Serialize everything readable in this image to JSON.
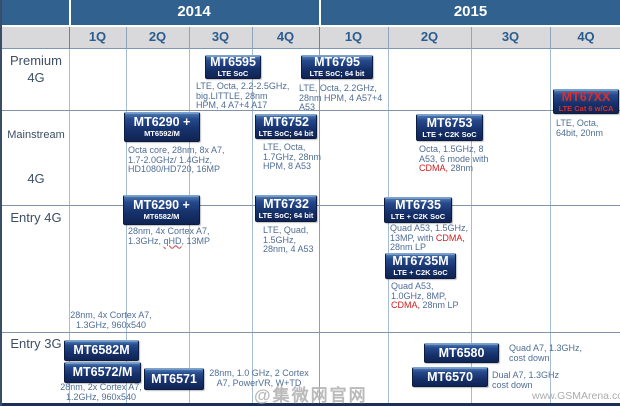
{
  "header": {
    "years": [
      "2014",
      "2015"
    ],
    "quarters": [
      "1Q",
      "2Q",
      "3Q",
      "4Q",
      "1Q",
      "2Q",
      "3Q",
      "4Q"
    ]
  },
  "row_labels": {
    "premium_line1": "Premium",
    "premium_line2": "4G",
    "mainstream_top": "Mainstream",
    "mainstream_bottom": "4G",
    "entry4g": "Entry 4G",
    "entry3g": "Entry 3G"
  },
  "chips": [
    {
      "id": "mt6595",
      "title": "MT6595",
      "subtitle": "LTE SoC",
      "variant": "blue"
    },
    {
      "id": "mt6795",
      "title": "MT6795",
      "subtitle": "LTE SoC; 64 bit",
      "variant": "blue"
    },
    {
      "id": "mt67xx",
      "title": "MT67XX",
      "subtitle": "LTE Cat 6 w/CA",
      "variant": "red-text"
    },
    {
      "id": "mt6290a",
      "title": "MT6290 +",
      "subtitle": "MT6592/M",
      "variant": "blue"
    },
    {
      "id": "mt6752",
      "title": "MT6752",
      "subtitle": "LTE SoC; 64 bit",
      "variant": "blue"
    },
    {
      "id": "mt6753",
      "title": "MT6753",
      "subtitle": "LTE + C2K SoC",
      "variant": "blue"
    },
    {
      "id": "mt6290b",
      "title": "MT6290 +",
      "subtitle": "MT6582/M",
      "variant": "blue"
    },
    {
      "id": "mt6732",
      "title": "MT6732",
      "subtitle": "LTE SoC; 64 bit",
      "variant": "blue"
    },
    {
      "id": "mt6735",
      "title": "MT6735",
      "subtitle": "LTE + C2K SoC",
      "variant": "blue"
    },
    {
      "id": "mt6735m",
      "title": "MT6735M",
      "subtitle": "LTE + C2K SoC",
      "variant": "blue"
    },
    {
      "id": "mt6582m",
      "title": "MT6582M",
      "subtitle": "",
      "variant": "blue"
    },
    {
      "id": "mt6572m",
      "title": "MT6572/M",
      "subtitle": "",
      "variant": "blue"
    },
    {
      "id": "mt6571",
      "title": "MT6571",
      "subtitle": "",
      "variant": "blue"
    },
    {
      "id": "mt6580",
      "title": "MT6580",
      "subtitle": "",
      "variant": "blue"
    },
    {
      "id": "mt6570",
      "title": "MT6570",
      "subtitle": "",
      "variant": "blue"
    }
  ],
  "notes": [
    {
      "id": "n6595",
      "lines": [
        [
          {
            "t": "LTE, Octa, 2.2-2.5GHz,"
          }
        ],
        [
          {
            "t": "big.LITTLE, 28nm"
          }
        ],
        [
          {
            "t": "HPM, 4 A7+4 A17"
          }
        ]
      ]
    },
    {
      "id": "n6795",
      "lines": [
        [
          {
            "t": "LTE, Octa, 2.2GHz,"
          }
        ],
        [
          {
            "t": "28nm HPM, 4 A57+4"
          }
        ],
        [
          {
            "t": "A53"
          }
        ]
      ]
    },
    {
      "id": "n67xx",
      "lines": [
        [
          {
            "t": "LTE, Octa,"
          }
        ],
        [
          {
            "t": "64bit, 20nm"
          }
        ]
      ]
    },
    {
      "id": "n6290a",
      "lines": [
        [
          {
            "t": "Octa core, 28nm, 8x A7,"
          }
        ],
        [
          {
            "t": "1.7-2.0GHz/ 1.4GHz,"
          }
        ],
        [
          {
            "t": "HD1080/HD720,  16MP"
          }
        ]
      ]
    },
    {
      "id": "n6752",
      "lines": [
        [
          {
            "t": "LTE, Octa,"
          }
        ],
        [
          {
            "t": "1.7GHz, 28nm"
          }
        ],
        [
          {
            "t": "HPM, 8 A53"
          }
        ]
      ]
    },
    {
      "id": "n6753",
      "lines": [
        [
          {
            "t": "Octa, 1.5GHz, 8"
          }
        ],
        [
          {
            "t": "A53, 6 mode with"
          }
        ],
        [
          {
            "t": "CDMA,",
            "red": true
          },
          {
            "t": " 28nm"
          }
        ]
      ]
    },
    {
      "id": "n6290b",
      "lines": [
        [
          {
            "t": "28nm, 4x Cortex A7,"
          }
        ],
        [
          {
            "t": "1.3GHz, "
          },
          {
            "t": "qHD,",
            "squiggle": true
          },
          {
            "t": " 13MP"
          }
        ]
      ]
    },
    {
      "id": "n6732",
      "lines": [
        [
          {
            "t": "LTE, Quad,"
          }
        ],
        [
          {
            "t": "1.5GHz,"
          }
        ],
        [
          {
            "t": "28nm, 4 A53"
          }
        ]
      ]
    },
    {
      "id": "n6735",
      "lines": [
        [
          {
            "t": "Quad A53, 1.5GHz,"
          }
        ],
        [
          {
            "t": "13MP, with "
          },
          {
            "t": "CDMA,",
            "red": true
          }
        ],
        [
          {
            "t": "28nm LP"
          }
        ]
      ]
    },
    {
      "id": "n6735m",
      "lines": [
        [
          {
            "t": "Quad A53,"
          }
        ],
        [
          {
            "t": "1.0GHz, 8MP,"
          }
        ],
        [
          {
            "t": "CDMA,",
            "red": true
          },
          {
            "t": " 28nm LP"
          }
        ]
      ]
    },
    {
      "id": "e4g",
      "lines": [
        [
          {
            "t": "28nm, 4x Cortex A7,"
          }
        ],
        [
          {
            "t": "1.3GHz, 960x540"
          }
        ]
      ]
    },
    {
      "id": "e3g",
      "lines": [
        [
          {
            "t": "28nm, 2x Cortex A7,"
          }
        ],
        [
          {
            "t": "1.2GHz, 960x540"
          }
        ]
      ]
    },
    {
      "id": "n6571",
      "lines": [
        [
          {
            "t": "28nm, 1.0 GHz, 2 Cortex"
          }
        ],
        [
          {
            "t": "A7, PowerVR, W+TD"
          }
        ]
      ]
    },
    {
      "id": "n6580",
      "lines": [
        [
          {
            "t": "Quad A7, 1.3GHz,"
          }
        ],
        [
          {
            "t": "cost down"
          }
        ]
      ]
    },
    {
      "id": "n6570",
      "lines": [
        [
          {
            "t": "Dual A7, 1.3GHz"
          }
        ],
        [
          {
            "t": "cost down"
          }
        ]
      ]
    }
  ],
  "watermarks": {
    "cn": "@集微网官网",
    "site": "www.GSMArena.com"
  },
  "colors": {
    "header_band": "#31618f",
    "quarter_bg": "#d9d9db",
    "chip_navy": "#16316b",
    "red_accent": "#cc1f1f",
    "note_text": "#4f6e96"
  }
}
